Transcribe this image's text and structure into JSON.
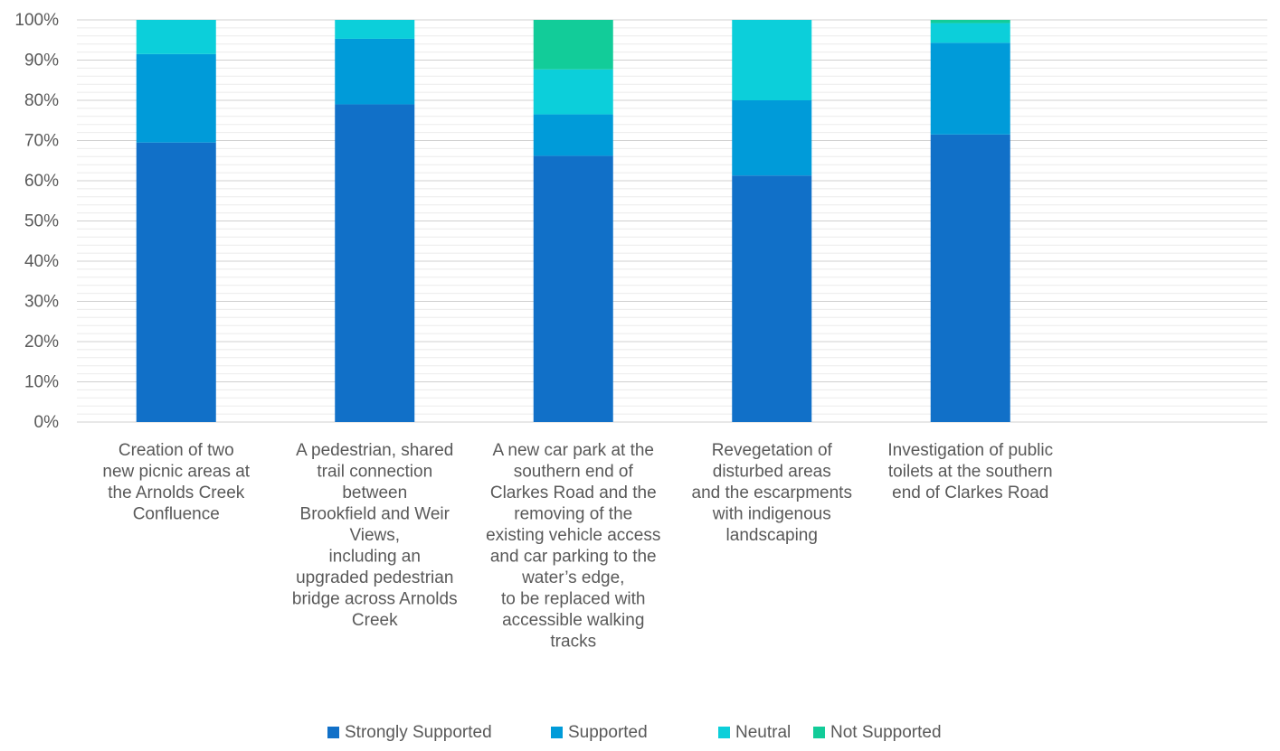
{
  "chart_data": {
    "type": "bar",
    "stacked": true,
    "percent_stacked": true,
    "title": "",
    "xlabel": "",
    "ylabel": "",
    "ylim": [
      0,
      100
    ],
    "y_ticks": [
      "0%",
      "10%",
      "20%",
      "30%",
      "40%",
      "50%",
      "60%",
      "70%",
      "80%",
      "90%",
      "100%"
    ],
    "grid": true,
    "legend_position": "bottom",
    "categories": [
      "Creation of two new picnic areas at the Arnolds Creek Confluence",
      "A pedestrian, shared trail connection between Brookfield and Weir Views, including an upgraded pedestrian bridge across Arnolds Creek",
      "A new car park at the southern end of Clarkes Road and the removing of the existing vehicle access and car parking to the water’s edge, to be replaced with accessible walking tracks",
      "Revegetation of disturbed areas and the escarpments with indigenous landscaping",
      "Investigation of public toilets at the southern end of Clarkes Road"
    ],
    "category_lines": [
      [
        "Creation of two",
        "new picnic areas at",
        "the Arnolds Creek",
        "Confluence"
      ],
      [
        "A pedestrian, shared",
        "trail connection",
        "between",
        "Brookfield and Weir",
        "Views,",
        "including an",
        "upgraded pedestrian",
        "bridge across Arnolds",
        "Creek"
      ],
      [
        "A new car park at the",
        "southern end of",
        "Clarkes Road and the",
        "removing of the",
        "existing vehicle access",
        "and car parking to the",
        "water’s edge,",
        "to be replaced with",
        "accessible walking",
        "tracks"
      ],
      [
        "Revegetation of",
        "disturbed areas",
        "and the escarpments",
        "with indigenous",
        "landscaping"
      ],
      [
        "Investigation of public",
        "toilets at the southern",
        "end of Clarkes Road"
      ]
    ],
    "series": [
      {
        "name": "Strongly Supported",
        "color": "#1170C8",
        "values": [
          69.5,
          79.0,
          66.2,
          61.3,
          71.5
        ]
      },
      {
        "name": "Supported",
        "color": "#009BD9",
        "values": [
          22.0,
          16.3,
          10.3,
          18.7,
          22.8
        ]
      },
      {
        "name": "Neutral",
        "color": "#0CCFDA",
        "values": [
          8.5,
          4.7,
          11.2,
          20.0,
          4.9
        ]
      },
      {
        "name": "Not Supported",
        "color": "#12CC99",
        "values": [
          0.0,
          0.0,
          12.3,
          0.0,
          0.8
        ]
      }
    ]
  }
}
